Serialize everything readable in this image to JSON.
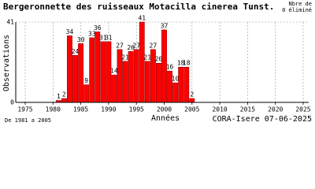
{
  "chart_data": {
    "type": "bar",
    "title": "Bergeronnette des ruisseaux  Motacilla cinerea Tunst.",
    "note_top": "Nbre de",
    "note_bottom": "0 éliminé",
    "y_label": "Observations",
    "x_label": "Années",
    "range_note": "De 1981 a 2005",
    "source": "CORA-Isere 07-06-2025",
    "x": [
      1981,
      1982,
      1983,
      1984,
      1985,
      1986,
      1987,
      1988,
      1989,
      1990,
      1991,
      1992,
      1993,
      1994,
      1995,
      1996,
      1997,
      1998,
      1999,
      2000,
      2001,
      2002,
      2003,
      2004,
      2005
    ],
    "values": [
      1,
      2,
      34,
      24,
      30,
      9,
      33,
      36,
      31,
      31,
      14,
      27,
      21,
      26,
      27,
      41,
      21,
      27,
      20,
      37,
      16,
      10,
      18,
      18,
      2
    ],
    "color": "#ff0000",
    "xlim": [
      1975,
      2025
    ],
    "xticks": [
      1975,
      1980,
      1985,
      1990,
      1995,
      2000,
      2005,
      2010,
      2015,
      2020,
      2025
    ],
    "ylim": [
      0,
      41
    ],
    "yticks": [
      0,
      41
    ],
    "grid": true
  }
}
